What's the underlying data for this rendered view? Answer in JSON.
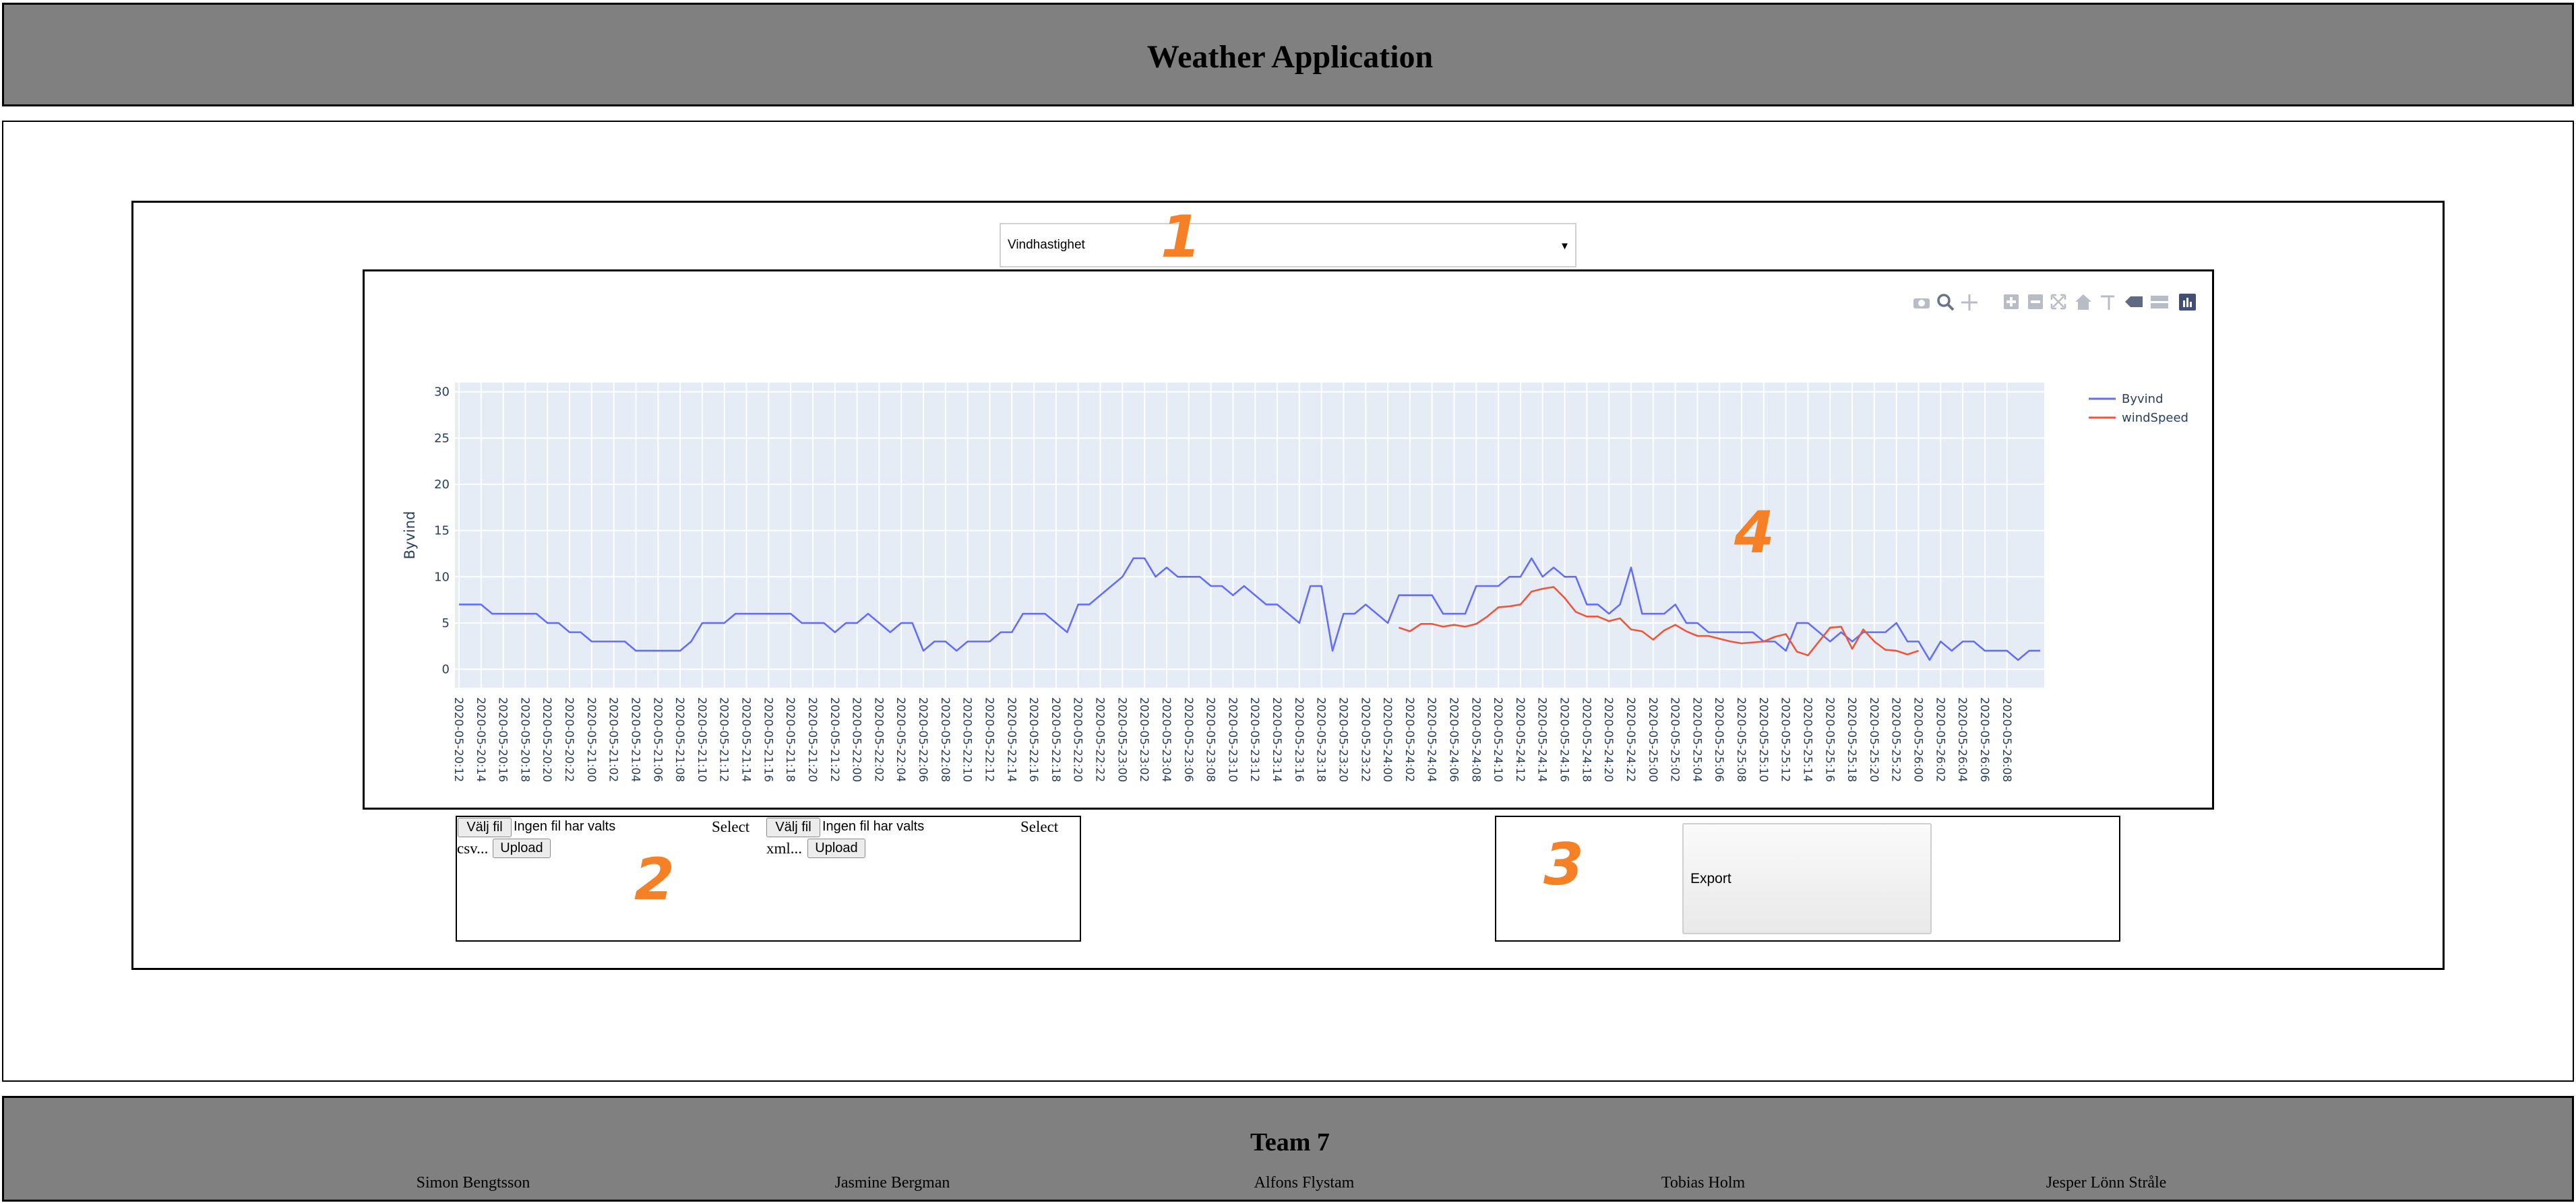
{
  "header": {
    "title": "Weather Application"
  },
  "selector": {
    "selected": "Vindhastighet"
  },
  "markers": {
    "m1": "1",
    "m2": "2",
    "m3": "3",
    "m4": "4"
  },
  "modebar": {
    "icons": [
      "camera-icon",
      "zoom-icon",
      "pan-icon",
      "zoom-in-icon",
      "zoom-out-icon",
      "autoscale-icon",
      "reset-axes-icon",
      "spike-lines-icon",
      "hover-closest-icon",
      "hover-compare-icon",
      "plotly-logo-icon"
    ]
  },
  "upload": {
    "csv": {
      "choose_label": "Välj fil",
      "status": "Ingen fil har valts",
      "select_label": "Select",
      "type_label": "csv...",
      "upload_label": "Upload"
    },
    "xml": {
      "choose_label": "Välj fil",
      "status": "Ingen fil har valts",
      "select_label": "Select",
      "type_label": "xml...",
      "upload_label": "Upload"
    }
  },
  "export": {
    "label": "Export"
  },
  "footer": {
    "team": "Team 7",
    "members": [
      "Simon Bengtsson",
      "Jasmine Bergman",
      "Alfons Flystam",
      "Tobias Holm",
      "Jesper Lönn Stråle"
    ]
  },
  "chart_data": {
    "type": "line",
    "title": "",
    "xlabel": "",
    "ylabel": "Byvind",
    "ylim": [
      -2,
      31
    ],
    "yticks": [
      0,
      5,
      10,
      15,
      20,
      25,
      30
    ],
    "grid": true,
    "legend_position": "top-right",
    "x_start": "2020-05-20 12:00",
    "x_step_hours": 1,
    "x_tick_labels": [
      "2020-05-20:12",
      "2020-05-20:14",
      "2020-05-20:16",
      "2020-05-20:18",
      "2020-05-20:20",
      "2020-05-20:22",
      "2020-05-21:00",
      "2020-05-21:02",
      "2020-05-21:04",
      "2020-05-21:06",
      "2020-05-21:08",
      "2020-05-21:10",
      "2020-05-21:12",
      "2020-05-21:14",
      "2020-05-21:16",
      "2020-05-21:18",
      "2020-05-21:20",
      "2020-05-21:22",
      "2020-05-22:00",
      "2020-05-22:02",
      "2020-05-22:04",
      "2020-05-22:06",
      "2020-05-22:08",
      "2020-05-22:10",
      "2020-05-22:12",
      "2020-05-22:14",
      "2020-05-22:16",
      "2020-05-22:18",
      "2020-05-22:20",
      "2020-05-22:22",
      "2020-05-23:00",
      "2020-05-23:02",
      "2020-05-23:04",
      "2020-05-23:06",
      "2020-05-23:08",
      "2020-05-23:10",
      "2020-05-23:12",
      "2020-05-23:14",
      "2020-05-23:16",
      "2020-05-23:18",
      "2020-05-23:20",
      "2020-05-23:22",
      "2020-05-24:00",
      "2020-05-24:02",
      "2020-05-24:04",
      "2020-05-24:06",
      "2020-05-24:08",
      "2020-05-24:10",
      "2020-05-24:12",
      "2020-05-24:14",
      "2020-05-24:16",
      "2020-05-24:18",
      "2020-05-24:20",
      "2020-05-24:22",
      "2020-05-25:00",
      "2020-05-25:02",
      "2020-05-25:04",
      "2020-05-25:06",
      "2020-05-25:08",
      "2020-05-25:10",
      "2020-05-25:12",
      "2020-05-25:14",
      "2020-05-25:16",
      "2020-05-25:18",
      "2020-05-25:20",
      "2020-05-25:22",
      "2020-05-26:00",
      "2020-05-26:02",
      "2020-05-26:04",
      "2020-05-26:06",
      "2020-05-26:08"
    ],
    "series": [
      {
        "name": "Byvind",
        "color": "#636efa",
        "start_index": 0,
        "values": [
          7,
          7,
          7,
          6,
          6,
          6,
          6,
          6,
          5,
          5,
          4,
          4,
          3,
          3,
          3,
          3,
          2,
          2,
          2,
          2,
          2,
          3,
          5,
          5,
          5,
          6,
          6,
          6,
          6,
          6,
          6,
          5,
          5,
          5,
          4,
          5,
          5,
          6,
          5,
          4,
          5,
          5,
          2,
          3,
          3,
          2,
          3,
          3,
          3,
          4,
          4,
          6,
          6,
          6,
          5,
          4,
          7,
          7,
          8,
          9,
          10,
          12,
          12,
          10,
          11,
          10,
          10,
          10,
          9,
          9,
          8,
          9,
          8,
          7,
          7,
          6,
          5,
          9,
          9,
          2,
          6,
          6,
          7,
          6,
          5,
          8,
          8,
          8,
          8,
          6,
          6,
          6,
          9,
          9,
          9,
          10,
          10,
          12,
          10,
          11,
          10,
          10,
          7,
          7,
          6,
          7,
          11,
          6,
          6,
          6,
          7,
          5,
          5,
          4,
          4,
          4,
          4,
          4,
          3,
          3,
          2,
          5,
          5,
          4,
          3,
          4,
          3,
          4,
          4,
          4,
          5,
          3,
          3,
          1,
          3,
          2,
          3,
          3,
          2,
          2,
          2,
          1,
          2,
          2
        ]
      },
      {
        "name": "windSpeed",
        "color": "#ef553b",
        "start_index": 85,
        "values": [
          4.5,
          4.1,
          4.9,
          4.9,
          4.6,
          4.8,
          4.6,
          4.9,
          5.7,
          6.7,
          6.8,
          7.0,
          8.4,
          8.7,
          8.9,
          7.7,
          6.2,
          5.7,
          5.7,
          5.2,
          5.5,
          4.3,
          4.1,
          3.2,
          4.2,
          4.8,
          4.1,
          3.6,
          3.6,
          3.3,
          3.0,
          2.8,
          2.9,
          3.0,
          3.5,
          3.8,
          1.9,
          1.5,
          3.0,
          4.5,
          4.6,
          2.2,
          4.3,
          3.0,
          2.1,
          2.0,
          1.6,
          2.0
        ]
      }
    ]
  }
}
